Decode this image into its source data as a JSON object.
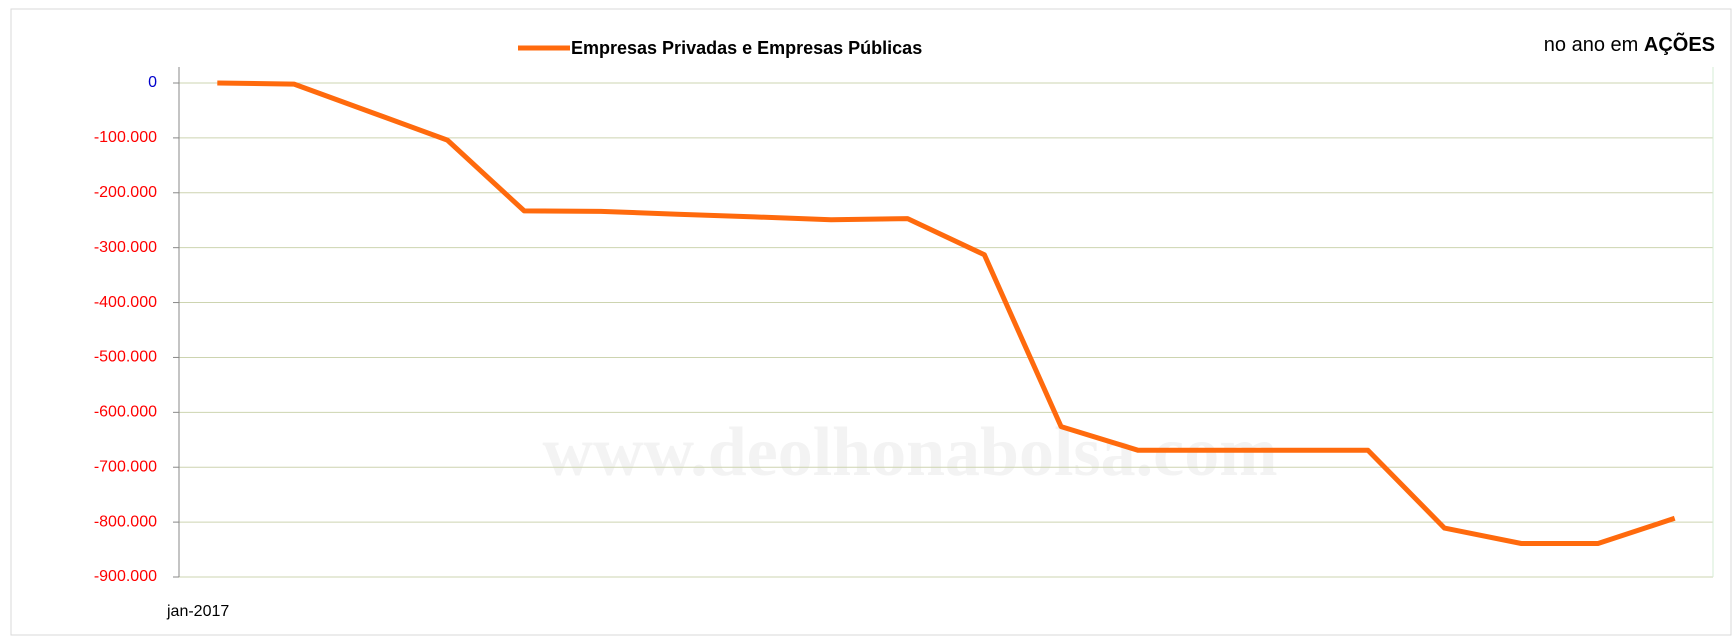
{
  "chart_data": {
    "type": "line",
    "legend_title": "Empresas Privadas e Empresas Públicas",
    "note": "no ano em",
    "note_bold": "AÇÕES",
    "watermark": "www.deolhonabolsa.com",
    "categories": [
      "jan-2017",
      null,
      null,
      null,
      null,
      null,
      null,
      null,
      null,
      null,
      null,
      null,
      null,
      null,
      null,
      null,
      null,
      null,
      null,
      null
    ],
    "series": [
      {
        "name": "Empresas Privadas e Empresas Públicas",
        "color": "#ff6a0d",
        "values": [
          0,
          -2000,
          -53000,
          -104000,
          -233000,
          -234000,
          -239000,
          -244000,
          -249000,
          -247000,
          -313000,
          -626000,
          -669000,
          -669000,
          -669000,
          -669000,
          -811000,
          -839000,
          -839000,
          -793000
        ]
      }
    ],
    "ylim": [
      -900000,
      0
    ],
    "yticks": [
      0,
      {
        "value": -100000,
        "label": "-100.000"
      },
      {
        "value": -200000,
        "label": "-200.000"
      },
      {
        "value": -300000,
        "label": "-300.000"
      },
      {
        "value": -400000,
        "label": "-400.000"
      },
      {
        "value": -500000,
        "label": "-500.000"
      },
      {
        "value": -600000,
        "label": "-600.000"
      },
      {
        "value": -700000,
        "label": "-700.000"
      },
      {
        "value": -800000,
        "label": "-800.000"
      },
      {
        "value": -900000,
        "label": "-900.000"
      }
    ],
    "grid": true,
    "grid_color": "#cdd4b0",
    "ytick_color": "#ff0000",
    "zero_tick_color": "#0000cc"
  }
}
